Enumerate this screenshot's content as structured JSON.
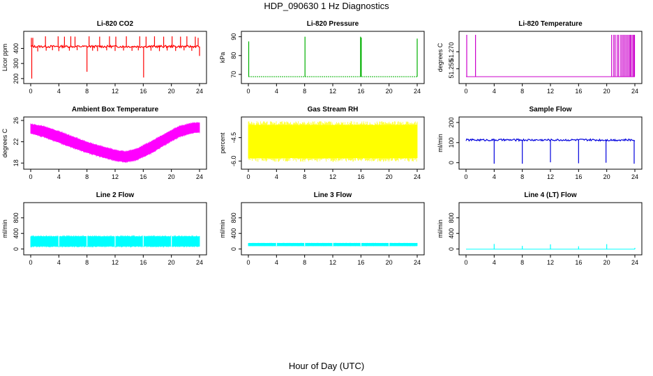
{
  "figure": {
    "title": "HDP_090630  1 Hz Diagnostics",
    "xlabel": "Hour of Day (UTC)"
  },
  "chart_data": [
    {
      "id": "co2",
      "type": "line",
      "title": "Li-820 CO2",
      "ylabel": "Licor ppm",
      "color": "#ff0000",
      "xlim": [
        0,
        24
      ],
      "ylim": [
        190,
        490
      ],
      "xticks": [
        0,
        4,
        8,
        12,
        16,
        20,
        24
      ],
      "yticks": [
        200,
        300,
        400
      ],
      "yticklabels": [
        "200",
        "300",
        "400"
      ],
      "base": 412,
      "band": [
        405,
        420
      ],
      "spikes_up": [
        [
          0.1,
          470
        ],
        [
          0.3,
          470
        ],
        [
          2.1,
          480
        ],
        [
          3.9,
          480
        ],
        [
          4.8,
          478
        ],
        [
          5.7,
          480
        ],
        [
          6.3,
          478
        ],
        [
          8.3,
          480
        ],
        [
          9.8,
          478
        ],
        [
          11.2,
          480
        ],
        [
          12.1,
          478
        ],
        [
          13.6,
          480
        ],
        [
          15.5,
          480
        ],
        [
          16.4,
          478
        ],
        [
          17.6,
          480
        ],
        [
          18.9,
          478
        ],
        [
          20.1,
          480
        ],
        [
          21.3,
          478
        ],
        [
          22.2,
          480
        ],
        [
          23.4,
          478
        ],
        [
          23.8,
          470
        ]
      ],
      "spikes_down": [
        [
          0.15,
          200
        ],
        [
          8.0,
          245
        ],
        [
          16.05,
          207
        ],
        [
          1.0,
          380
        ],
        [
          2.2,
          385
        ],
        [
          3.1,
          388
        ],
        [
          4.0,
          382
        ],
        [
          5.5,
          385
        ],
        [
          6.6,
          388
        ],
        [
          8.8,
          385
        ],
        [
          9.5,
          382
        ],
        [
          10.8,
          387
        ],
        [
          12.0,
          383
        ],
        [
          13.2,
          386
        ],
        [
          14.4,
          384
        ],
        [
          15.3,
          387
        ],
        [
          17.1,
          385
        ],
        [
          18.3,
          382
        ],
        [
          19.4,
          386
        ],
        [
          20.6,
          383
        ],
        [
          21.8,
          387
        ],
        [
          22.9,
          384
        ],
        [
          24.0,
          350
        ]
      ]
    },
    {
      "id": "pressure",
      "type": "line",
      "title": "Li-820 Pressure",
      "ylabel": "kPa",
      "color": "#00b000",
      "xlim": [
        0,
        24
      ],
      "ylim": [
        67,
        91
      ],
      "xticks": [
        0,
        4,
        8,
        12,
        16,
        20,
        24
      ],
      "yticks": [
        70,
        80,
        90
      ],
      "yticklabels": [
        "70",
        "80",
        "90"
      ],
      "base": 68.8,
      "spikes_up": [
        [
          0.05,
          87.5
        ],
        [
          8.05,
          90
        ],
        [
          15.95,
          90
        ],
        [
          16.05,
          89.5
        ],
        [
          24.0,
          89
        ]
      ]
    },
    {
      "id": "licor_temp",
      "type": "line",
      "title": "Li-820 Temperature",
      "ylabel": "degrees C",
      "color": "#cc00cc",
      "xlim": [
        0,
        24
      ],
      "ylim": [
        51.245,
        51.285
      ],
      "xticks": [
        0,
        4,
        8,
        12,
        16,
        20,
        24
      ],
      "yticks": [
        51.255,
        51.27
      ],
      "yticklabels": [
        "51.255",
        "51.270"
      ],
      "base": 51.248,
      "spikes_up": [
        [
          0.1,
          51.285
        ],
        [
          1.35,
          51.285
        ],
        [
          20.7,
          51.285
        ],
        [
          21.0,
          51.285
        ],
        [
          21.2,
          51.285
        ],
        [
          21.5,
          51.285
        ],
        [
          21.7,
          51.285
        ],
        [
          22.0,
          51.285
        ],
        [
          22.2,
          51.285
        ],
        [
          22.4,
          51.285
        ],
        [
          22.6,
          51.285
        ],
        [
          22.8,
          51.285
        ],
        [
          23.0,
          51.285
        ],
        [
          23.2,
          51.285
        ],
        [
          23.35,
          51.285
        ],
        [
          23.5,
          51.285
        ],
        [
          23.7,
          51.285
        ],
        [
          23.85,
          51.285
        ],
        [
          23.95,
          51.285
        ]
      ]
    },
    {
      "id": "box_temp",
      "type": "area",
      "title": "Ambient Box Temperature",
      "ylabel": "degrees C",
      "color": "#ff00ff",
      "xlim": [
        0,
        24
      ],
      "ylim": [
        17.5,
        26
      ],
      "xticks": [
        0,
        4,
        8,
        12,
        16,
        20,
        24
      ],
      "yticks": [
        18,
        22,
        26
      ],
      "yticklabels": [
        "18",
        "22",
        "26"
      ],
      "x": [
        0,
        2,
        4,
        6,
        8,
        10,
        12,
        13.5,
        15,
        17,
        19,
        21,
        23,
        24
      ],
      "lower": [
        23.6,
        22.9,
        21.9,
        20.9,
        20.0,
        19.2,
        18.5,
        18.2,
        18.6,
        19.8,
        21.4,
        22.9,
        23.7,
        23.8
      ],
      "upper": [
        25.3,
        24.8,
        23.9,
        22.9,
        21.9,
        21.1,
        20.4,
        20.1,
        20.6,
        21.9,
        23.4,
        24.8,
        25.5,
        25.5
      ]
    },
    {
      "id": "rh",
      "type": "area",
      "title": "Gas Stream RH",
      "ylabel": "percent",
      "color": "#ffff00",
      "xlim": [
        0,
        24
      ],
      "ylim": [
        -6.3,
        -3.4
      ],
      "xticks": [
        0,
        4,
        8,
        12,
        16,
        20,
        24
      ],
      "yticks": [
        -6.0,
        -4.5
      ],
      "yticklabels": [
        "-6.0",
        "-4.5"
      ],
      "x": [
        0,
        24
      ],
      "lower": [
        -5.8,
        -5.8
      ],
      "upper": [
        -3.7,
        -3.7
      ]
    },
    {
      "id": "sample_flow",
      "type": "line",
      "title": "Sample Flow",
      "ylabel": "ml/min",
      "color": "#0000dd",
      "xlim": [
        0,
        24
      ],
      "ylim": [
        -15,
        210
      ],
      "xticks": [
        0,
        4,
        8,
        12,
        16,
        20,
        24
      ],
      "yticks": [
        0,
        100,
        200
      ],
      "yticklabels": [
        "0",
        "100",
        "200"
      ],
      "base": 112,
      "band": [
        108,
        118
      ],
      "spikes_down": [
        [
          4.0,
          -5
        ],
        [
          8.0,
          -5
        ],
        [
          12.0,
          2
        ],
        [
          16.0,
          -3
        ],
        [
          19.9,
          0
        ],
        [
          23.9,
          -5
        ]
      ]
    },
    {
      "id": "line2",
      "type": "area",
      "title": "Line 2 Flow",
      "ylabel": "ml/min",
      "color": "#00ffff",
      "xlim": [
        0,
        24
      ],
      "ylim": [
        -60,
        1100
      ],
      "xticks": [
        0,
        4,
        8,
        12,
        16,
        20,
        24
      ],
      "yticks": [
        0,
        400,
        800
      ],
      "yticklabels": [
        "0",
        "400",
        "800"
      ],
      "x": [
        0,
        24
      ],
      "lower": [
        70,
        70
      ],
      "upper": [
        320,
        320
      ],
      "gaps": [
        4,
        8,
        12,
        16,
        20
      ]
    },
    {
      "id": "line3",
      "type": "area",
      "title": "Line 3 Flow",
      "ylabel": "ml/min",
      "color": "#00ffff",
      "xlim": [
        0,
        24
      ],
      "ylim": [
        -60,
        1100
      ],
      "xticks": [
        0,
        4,
        8,
        12,
        16,
        20,
        24
      ],
      "yticks": [
        0,
        400,
        800
      ],
      "yticklabels": [
        "0",
        "400",
        "800"
      ],
      "x": [
        0,
        24
      ],
      "lower": [
        80,
        80
      ],
      "upper": [
        150,
        150
      ],
      "gaps": [
        4,
        8,
        12,
        16,
        20
      ]
    },
    {
      "id": "line4",
      "type": "line",
      "title": "Line 4 (LT) Flow",
      "ylabel": "ml/min",
      "color": "#00ffff",
      "xlim": [
        0,
        24
      ],
      "ylim": [
        -60,
        1100
      ],
      "xticks": [
        0,
        4,
        8,
        12,
        16,
        20,
        24
      ],
      "yticks": [
        0,
        400,
        800
      ],
      "yticklabels": [
        "0",
        "400",
        "800"
      ],
      "base": -5,
      "spikes_up": [
        [
          4.0,
          130
        ],
        [
          8.0,
          80
        ],
        [
          12.0,
          120
        ],
        [
          16.0,
          70
        ],
        [
          20.0,
          125
        ],
        [
          24.0,
          30
        ]
      ]
    }
  ]
}
